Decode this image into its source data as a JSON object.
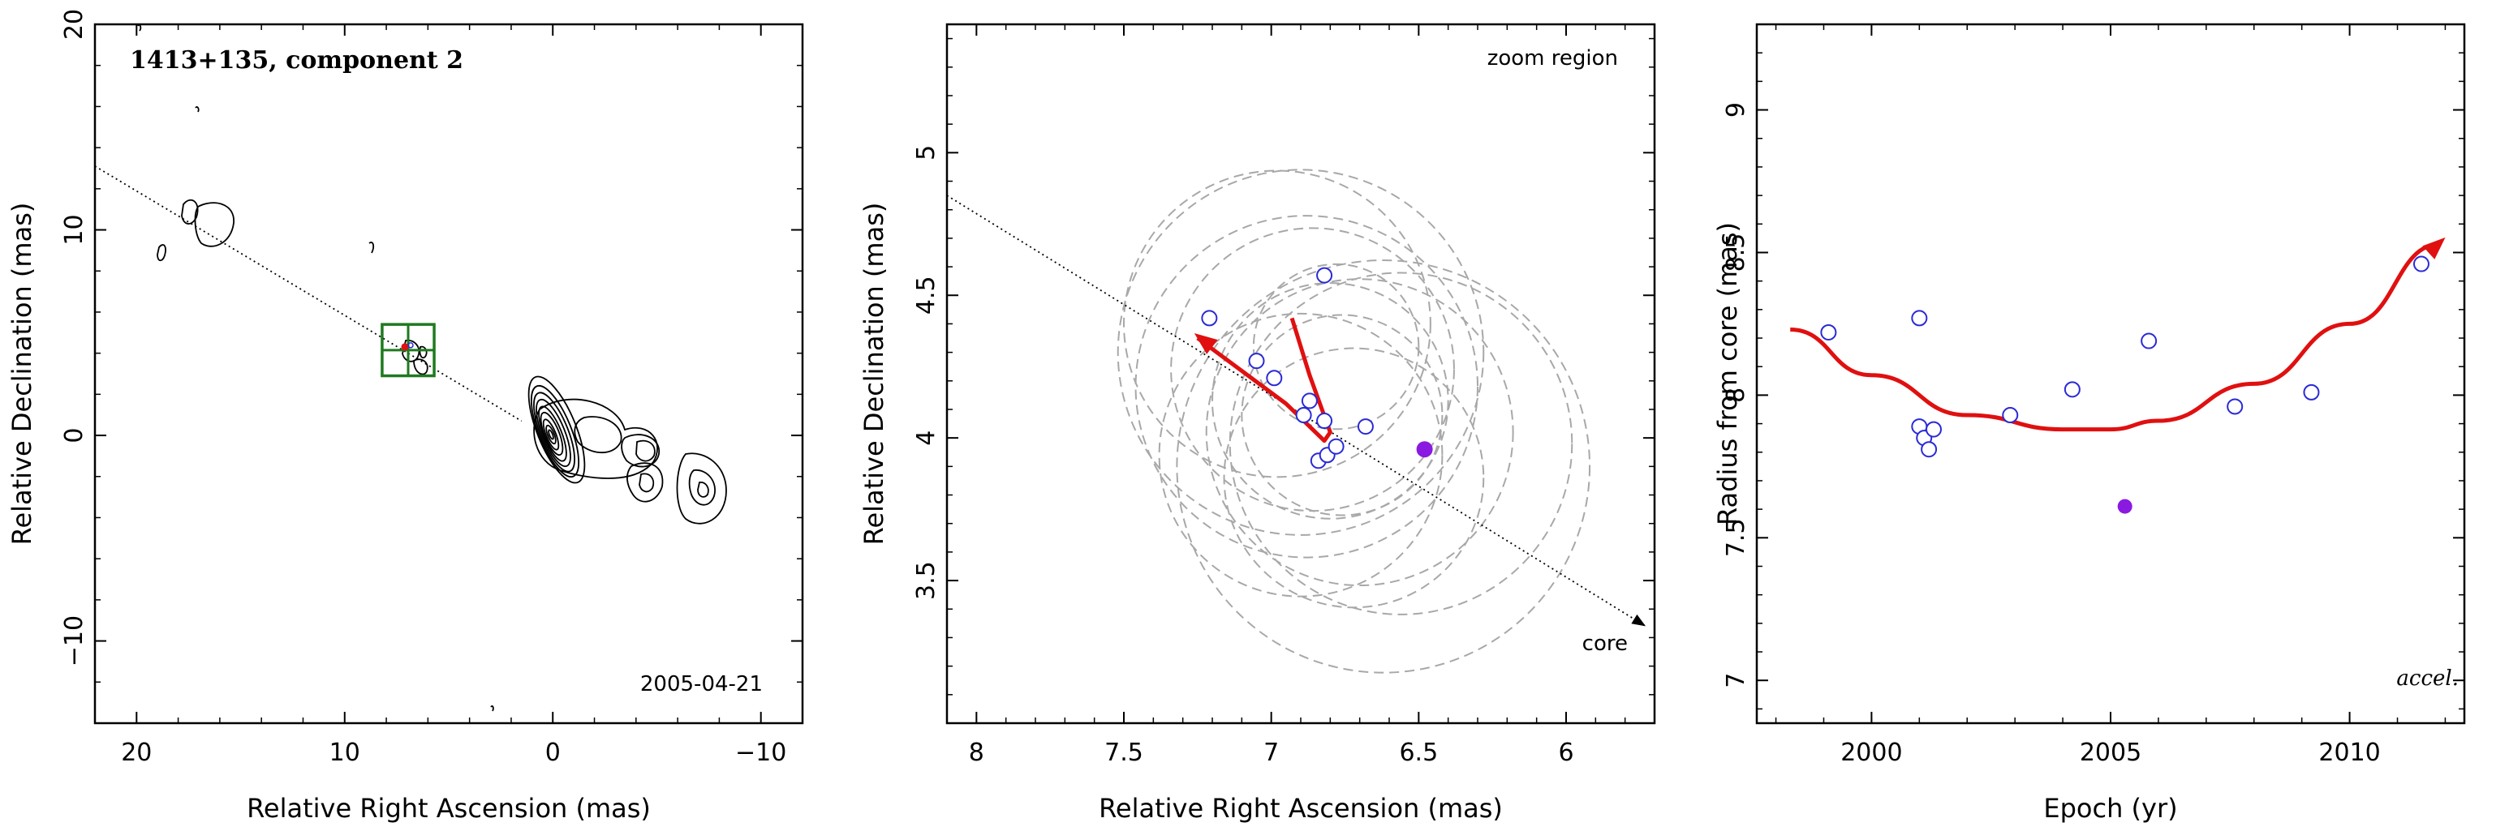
{
  "chart_data": [
    {
      "type": "contour",
      "title": "1413+135, component 2",
      "date_label": "2005-04-21",
      "xlabel": "Relative Right Ascension (mas)",
      "ylabel": "Relative Declination (mas)",
      "xlim": [
        22,
        -12
      ],
      "ylim": [
        -14,
        20
      ],
      "x_reversed": true,
      "xticks": [
        20,
        10,
        0,
        -10
      ],
      "yticks": [
        -10,
        0,
        10,
        20
      ],
      "xtick_labels": [
        "20",
        "10",
        "0",
        "−10"
      ],
      "ytick_labels": [
        "−10",
        "0",
        "10",
        "20"
      ],
      "jet_axis_line": {
        "x": [
          22,
          1.5
        ],
        "y": [
          13.1,
          0.7
        ]
      },
      "zoom_box": {
        "x": [
          8.2,
          5.7
        ],
        "y": [
          2.9,
          5.4
        ]
      },
      "core_center": {
        "x": 0,
        "y": 0
      }
    },
    {
      "type": "scatter",
      "title": "zoom region",
      "core_label": "core",
      "xlabel": "Relative Right Ascension (mas)",
      "ylabel": "Relative Declination (mas)",
      "xlim": [
        8.1,
        5.7
      ],
      "ylim": [
        3.0,
        5.45
      ],
      "x_reversed": true,
      "xticks": [
        8,
        7.5,
        7,
        6.5,
        6
      ],
      "yticks": [
        3.5,
        4,
        4.5,
        5
      ],
      "xtick_labels": [
        "8",
        "7.5",
        "7",
        "6.5",
        "6"
      ],
      "ytick_labels": [
        "3.5",
        "4",
        "4.5",
        "5"
      ],
      "points": [
        {
          "x": 7.21,
          "y": 4.42
        },
        {
          "x": 7.05,
          "y": 4.27
        },
        {
          "x": 6.99,
          "y": 4.21
        },
        {
          "x": 6.87,
          "y": 4.13
        },
        {
          "x": 6.89,
          "y": 4.08
        },
        {
          "x": 6.82,
          "y": 4.57
        },
        {
          "x": 6.82,
          "y": 4.06
        },
        {
          "x": 6.84,
          "y": 3.92
        },
        {
          "x": 6.81,
          "y": 3.94
        },
        {
          "x": 6.78,
          "y": 3.97
        },
        {
          "x": 6.68,
          "y": 4.04
        }
      ],
      "highlight_point": {
        "x": 6.48,
        "y": 3.96
      },
      "beam_ellipses": [
        {
          "cx": 6.9,
          "cy": 4.3,
          "r": 0.62
        },
        {
          "cx": 6.86,
          "cy": 4.24,
          "r": 0.48
        },
        {
          "cx": 6.8,
          "cy": 4.13,
          "r": 0.4
        },
        {
          "cx": 6.7,
          "cy": 4.02,
          "r": 0.52
        },
        {
          "cx": 6.9,
          "cy": 3.94,
          "r": 0.48
        },
        {
          "cx": 6.62,
          "cy": 3.9,
          "r": 0.7
        },
        {
          "cx": 6.88,
          "cy": 4.18,
          "r": 0.58
        },
        {
          "cx": 6.76,
          "cy": 4.08,
          "r": 0.34
        },
        {
          "cx": 6.72,
          "cy": 3.86,
          "r": 0.44
        },
        {
          "cx": 6.78,
          "cy": 4.32,
          "r": 0.28
        },
        {
          "cx": 6.98,
          "cy": 4.4,
          "r": 0.52
        },
        {
          "cx": 6.56,
          "cy": 3.98,
          "r": 0.58
        }
      ],
      "jet_axis_line": {
        "x": [
          8.1,
          5.73
        ],
        "y": [
          4.85,
          3.34
        ]
      },
      "motion_arrow": {
        "x": [
          6.93,
          6.87,
          6.8,
          6.82,
          6.95,
          7.25
        ],
        "y": [
          4.42,
          4.22,
          4.02,
          3.99,
          4.12,
          4.35
        ]
      }
    },
    {
      "type": "scatter",
      "annotation": "accel.",
      "xlabel": "Epoch (yr)",
      "ylabel": "Radius from core (mas)",
      "xlim": [
        1997.6,
        2012.4
      ],
      "ylim": [
        6.85,
        9.3
      ],
      "xticks": [
        2000,
        2005,
        2010
      ],
      "yticks": [
        7,
        7.5,
        8,
        8.5,
        9
      ],
      "xtick_labels": [
        "2000",
        "2005",
        "2010"
      ],
      "ytick_labels": [
        "7",
        "7.5",
        "8",
        "8.5",
        "9"
      ],
      "points": [
        {
          "x": 1999.1,
          "y": 8.22
        },
        {
          "x": 2001.0,
          "y": 8.27
        },
        {
          "x": 2001.0,
          "y": 7.89
        },
        {
          "x": 2001.1,
          "y": 7.85
        },
        {
          "x": 2001.2,
          "y": 7.81
        },
        {
          "x": 2001.3,
          "y": 7.88
        },
        {
          "x": 2002.9,
          "y": 7.93
        },
        {
          "x": 2004.2,
          "y": 8.02
        },
        {
          "x": 2005.8,
          "y": 8.19
        },
        {
          "x": 2007.6,
          "y": 7.96
        },
        {
          "x": 2009.2,
          "y": 8.01
        },
        {
          "x": 2011.5,
          "y": 8.46
        }
      ],
      "highlight_point": {
        "x": 2005.3,
        "y": 7.61
      },
      "fit_curve": {
        "x": [
          1998.3,
          2000,
          2002,
          2004,
          2005,
          2006,
          2008,
          2010,
          2011.9
        ],
        "y": [
          8.23,
          8.07,
          7.93,
          7.88,
          7.88,
          7.91,
          8.04,
          8.25,
          8.53
        ]
      }
    }
  ]
}
